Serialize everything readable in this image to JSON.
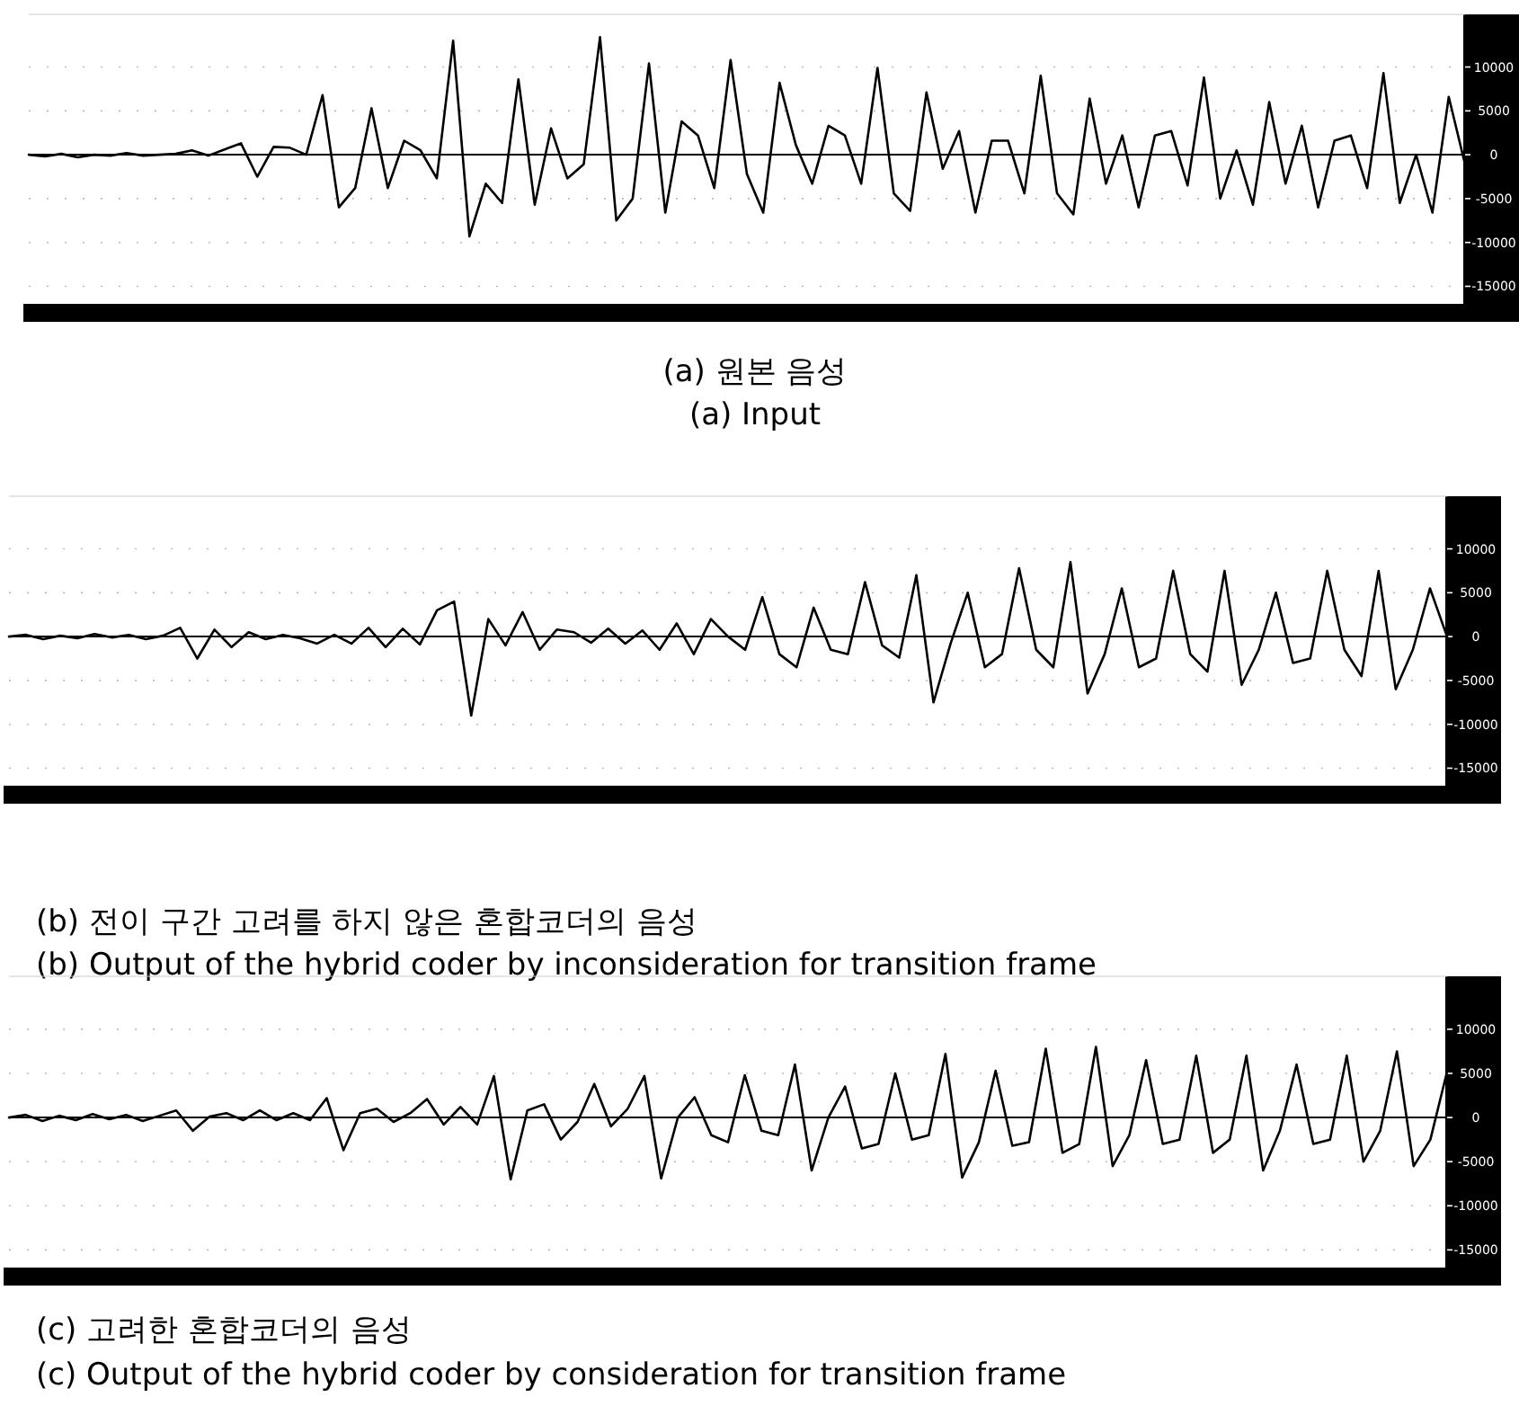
{
  "chart_data": [
    {
      "type": "line",
      "categories": [
        null,
        null,
        null,
        null,
        null,
        null,
        null,
        null,
        null,
        null,
        null,
        null,
        null,
        null,
        null,
        null,
        null,
        null,
        null,
        null,
        null,
        null,
        null,
        null,
        null,
        null,
        null,
        null,
        null,
        null,
        null,
        null,
        null,
        null,
        null,
        null,
        null,
        null,
        null,
        null,
        null,
        null,
        null,
        null,
        null,
        null,
        null,
        null,
        null,
        null,
        null,
        null,
        null,
        null,
        null,
        null,
        null,
        null,
        null,
        null,
        null,
        null,
        null,
        null,
        null,
        null,
        null,
        null,
        null,
        null,
        null,
        null,
        null,
        null,
        null,
        null,
        null,
        null,
        null,
        null,
        null,
        null,
        null,
        null,
        null,
        null,
        null,
        null,
        null
      ],
      "series": [
        {
          "color": "#000000",
          "values": [
            0,
            -200,
            100,
            -300,
            0,
            -100,
            200,
            -100,
            0,
            100,
            500,
            -100,
            600,
            1300,
            -2500,
            900,
            800,
            0,
            6800,
            -6000,
            -3800,
            5300,
            -3800,
            1600,
            500,
            -2700,
            13000,
            -9300,
            -3300,
            -5500,
            8600,
            -5700,
            3000,
            -2700,
            -1100,
            13400,
            -7500,
            -5000,
            10400,
            -6600,
            3800,
            2200,
            -3800,
            10800,
            -2200,
            -6600,
            8200,
            1100,
            -3300,
            3300,
            2200,
            -3300,
            9900,
            -4400,
            -6400,
            7100,
            -1600,
            2700,
            -6600,
            1600,
            1600,
            -4400,
            9000,
            -4400,
            -6800,
            6400,
            -3300,
            2200,
            -6000,
            2200,
            2700,
            -3500,
            8800,
            -5000,
            500,
            -5700,
            6000,
            -3300,
            3300,
            -6000,
            1600,
            2200,
            -3800,
            9300,
            -5500,
            0,
            -6600,
            6600,
            -1100
          ]
        }
      ],
      "ylim": [
        -17000,
        16000
      ],
      "yticks": [
        10000,
        5000,
        0,
        -5000,
        -10000,
        -15000
      ],
      "tick_labels": "y",
      "grid": "y",
      "ref_lines": [
        {
          "axis": "y",
          "value": 0
        }
      ],
      "annotations": [
        "(a) 원본 음성",
        "(a) Input"
      ]
    },
    {
      "type": "line",
      "categories": [
        null,
        null,
        null,
        null,
        null,
        null,
        null,
        null,
        null,
        null,
        null,
        null,
        null,
        null,
        null,
        null,
        null,
        null,
        null,
        null,
        null,
        null,
        null,
        null,
        null,
        null,
        null,
        null,
        null,
        null,
        null,
        null,
        null,
        null,
        null,
        null,
        null,
        null,
        null,
        null,
        null,
        null,
        null,
        null,
        null,
        null,
        null,
        null,
        null,
        null,
        null,
        null,
        null,
        null,
        null,
        null,
        null,
        null,
        null,
        null,
        null,
        null,
        null,
        null,
        null,
        null,
        null,
        null,
        null,
        null,
        null,
        null,
        null,
        null,
        null,
        null,
        null,
        null,
        null,
        null,
        null,
        null,
        null,
        null,
        null
      ],
      "series": [
        {
          "color": "#000000",
          "values": [
            0,
            200,
            -300,
            100,
            -200,
            300,
            -100,
            200,
            -300,
            100,
            1000,
            -2500,
            800,
            -1200,
            500,
            -300,
            200,
            -200,
            -800,
            200,
            -800,
            1000,
            -1200,
            900,
            -900,
            3000,
            4000,
            -9000,
            2000,
            -1000,
            2800,
            -1500,
            800,
            500,
            -700,
            900,
            -800,
            700,
            -1500,
            1500,
            -2000,
            2000,
            0,
            -1500,
            4500,
            -2000,
            -3500,
            3300,
            -1500,
            -2000,
            6200,
            -1000,
            -2400,
            7000,
            -7500,
            -800,
            5000,
            -3500,
            -2000,
            7800,
            -1500,
            -3500,
            8500,
            -6500,
            -2000,
            5500,
            -3500,
            -2500,
            7500,
            -2000,
            -4000,
            7500,
            -5500,
            -1500,
            5000,
            -3000,
            -2500,
            7500,
            -1500,
            -4500,
            7500,
            -6000,
            -1500,
            5500,
            0
          ]
        }
      ],
      "ylim": [
        -17000,
        16000
      ],
      "yticks": [
        10000,
        5000,
        0,
        -5000,
        -10000,
        -15000
      ],
      "tick_labels": "y",
      "grid": "y",
      "ref_lines": [
        {
          "axis": "y",
          "value": 0
        }
      ],
      "annotations": [
        "(b) 전이 구간 고려를 하지 않은 혼합코더의 음성",
        "(b) Output of the hybrid coder by inconsideration for transition frame"
      ]
    },
    {
      "type": "line",
      "categories": [
        null,
        null,
        null,
        null,
        null,
        null,
        null,
        null,
        null,
        null,
        null,
        null,
        null,
        null,
        null,
        null,
        null,
        null,
        null,
        null,
        null,
        null,
        null,
        null,
        null,
        null,
        null,
        null,
        null,
        null,
        null,
        null,
        null,
        null,
        null,
        null,
        null,
        null,
        null,
        null,
        null,
        null,
        null,
        null,
        null,
        null,
        null,
        null,
        null,
        null,
        null,
        null,
        null,
        null,
        null,
        null,
        null,
        null,
        null,
        null,
        null,
        null,
        null,
        null,
        null,
        null,
        null,
        null,
        null,
        null,
        null,
        null,
        null,
        null,
        null,
        null,
        null,
        null,
        null,
        null,
        null,
        null,
        null,
        null,
        null,
        null,
        null
      ],
      "series": [
        {
          "color": "#000000",
          "values": [
            0,
            300,
            -400,
            200,
            -300,
            400,
            -200,
            300,
            -400,
            200,
            800,
            -1500,
            100,
            500,
            -300,
            800,
            -300,
            500,
            -300,
            2200,
            -3700,
            500,
            1000,
            -500,
            500,
            2100,
            -800,
            1200,
            -800,
            4700,
            -7000,
            800,
            1500,
            -2500,
            -500,
            3800,
            -1000,
            1000,
            4700,
            -6900,
            0,
            2300,
            -2000,
            -2800,
            4800,
            -1500,
            -2000,
            6000,
            -6000,
            0,
            3500,
            -3500,
            -3000,
            5000,
            -2500,
            -2000,
            7200,
            -6800,
            -2800,
            5300,
            -3200,
            -2800,
            7800,
            -4000,
            -3000,
            8000,
            -5500,
            -2000,
            6500,
            -3000,
            -2500,
            7000,
            -4000,
            -2500,
            7000,
            -6000,
            -1500,
            6000,
            -3000,
            -2500,
            7000,
            -5000,
            -1500,
            7500,
            -5500,
            -2500,
            5200
          ]
        }
      ],
      "ylim": [
        -17000,
        16000
      ],
      "yticks": [
        10000,
        5000,
        0,
        -5000,
        -10000,
        -15000
      ],
      "tick_labels": "y",
      "grid": "y",
      "ref_lines": [
        {
          "axis": "y",
          "value": 0
        }
      ],
      "annotations": [
        "(c) 고려한 혼합코더의 음성",
        "(c) Output of the hybrid coder by consideration for transition frame"
      ]
    }
  ]
}
